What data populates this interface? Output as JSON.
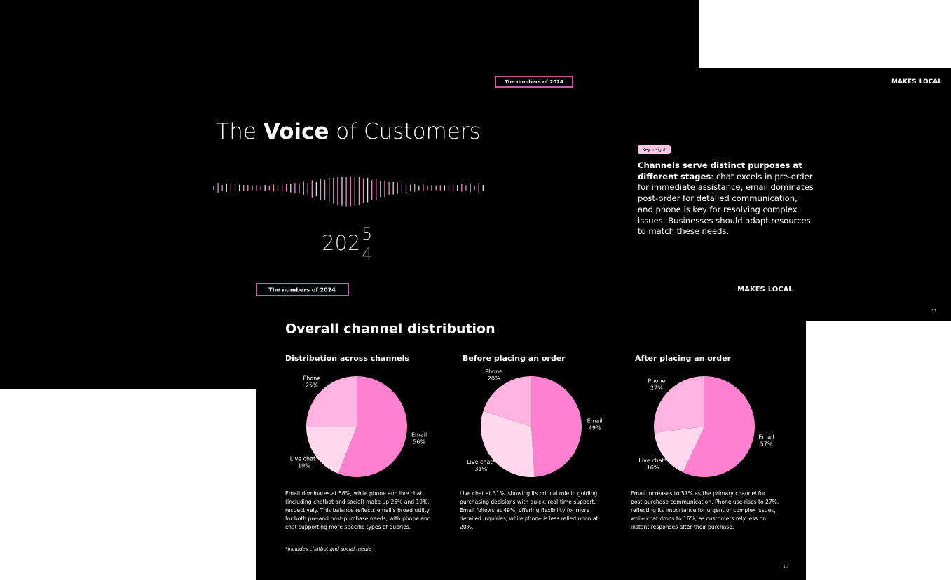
{
  "cover_slide": {
    "title_pre": "The ",
    "title_bold": "Voice",
    "title_post": " of Customers",
    "year_base": "202",
    "year_new": "5",
    "year_old": "4"
  },
  "insight_slide": {
    "tag": "The numbers of 2024",
    "logo_left": "MAKES",
    "logo_right": "LOCAL",
    "pill": "Key insight",
    "insight_bold": "Channels serve distinct purposes at different stages",
    "insight_text": ": chat excels in pre-order for immediate assistance, email dominates post-order for detailed communication, and phone is key for resolving complex issues. Businesses should adapt resources to match these needs.",
    "page": "11"
  },
  "front_slide": {
    "tag": "The numbers of 2024",
    "logo_left": "MAKES",
    "logo_right": "LOCAL",
    "title": "Overall channel distribution",
    "footnote": "*includes chatbot and social media",
    "page": "10"
  },
  "chart_data": [
    {
      "type": "pie",
      "title": "Distribution across channels",
      "categories": [
        "Email",
        "Live chat*",
        "Phone"
      ],
      "values": [
        56,
        19,
        25
      ],
      "value_labels": [
        "56%",
        "19%",
        "25%"
      ],
      "colors": [
        "#ff80d0",
        "#ffd8ee",
        "#ffb3e0"
      ],
      "caption": "Email dominates at 56%, while phone and live chat (including chatbot and social) make up 25% and 19%, respectively. This balance reflects email's broad utility for both pre-and post-purchase needs, with phone and chat supporting more specific types of queries."
    },
    {
      "type": "pie",
      "title": "Before placing an order",
      "categories": [
        "Email",
        "Live chat*",
        "Phone"
      ],
      "values": [
        49,
        31,
        20
      ],
      "value_labels": [
        "49%",
        "31%",
        "20%"
      ],
      "colors": [
        "#ff80d0",
        "#ffd8ee",
        "#ffb3e0"
      ],
      "caption": "Live chat at 31%, showing its critical role in guiding purchasing decisions with quick, real-time support. Email follows at 49%, offering flexibility for more detailed inquiries, while phone is less relied upon at 20%."
    },
    {
      "type": "pie",
      "title": "After placing an order",
      "categories": [
        "Email",
        "Live chat*",
        "Phone"
      ],
      "values": [
        57,
        16,
        27
      ],
      "value_labels": [
        "57%",
        "16%",
        "27%"
      ],
      "colors": [
        "#ff80d0",
        "#ffd8ee",
        "#ffb3e0"
      ],
      "caption": "Email increases to 57% as the primary channel for post-purchase communication. Phone use rises to 27%, reflecting its importance for urgent or complex issues, while chat drops to 16%, as customers rely less on instant responses after their purchase."
    }
  ]
}
